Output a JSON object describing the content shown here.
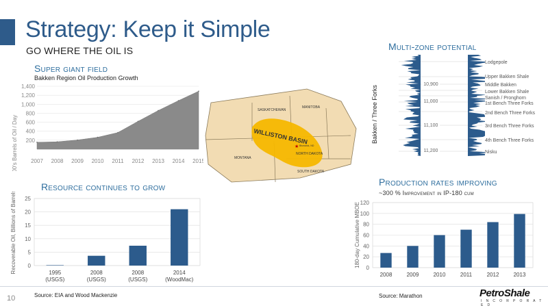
{
  "page": {
    "title": "Strategy: Keep it Simple",
    "subtitle": "GO WHERE THE OIL IS",
    "page_number": "10",
    "logo": "PetroShale",
    "logo_sub": "I N C O R P O R A T E D"
  },
  "colors": {
    "title": "#2e5b8a",
    "section_head": "#2e6e9e",
    "bar": "#2c5b8c",
    "area": "#8a8a8a",
    "basin": "#f5b700",
    "map_land": "#f2dcb3"
  },
  "super_giant": {
    "heading": "Super giant field",
    "caption": "Bakken Region Oil Production Growth"
  },
  "resource": {
    "heading": "Resource continues to grow",
    "source": "Source:  EIA and Wood Mackenzie"
  },
  "multizone": {
    "heading": "Multi-zone potential",
    "ylabel": "Bakken / Three Forks",
    "depths": [
      "10,900",
      "11,000",
      "11,100",
      "11,200"
    ],
    "zones": [
      "Lodgepole",
      "Upper Bakken Shale",
      "Middle Bakken",
      "Lower Bakken Shale",
      "Sanish / Pronghorn",
      "1st Bench Three Forks",
      "2nd Bench Three Forks",
      "3rd Bench Three Forks",
      "4th Bench Three Forks",
      "Nisku"
    ]
  },
  "production": {
    "heading": "Production rates improving",
    "subheading": "~300 % Improvement in IP-180 cum",
    "source": "Source: Marathon"
  },
  "map": {
    "labels": [
      "SASKATCHEWAN",
      "MANITOBA",
      "MONTANA",
      "NORTH DAKOTA",
      "SOUTH DAKOTA",
      "WILLISTON BASIN"
    ],
    "city": "Bismarck, ND"
  },
  "chart_data": [
    {
      "type": "area",
      "title": "Bakken Region Oil Production Growth",
      "ylabel": "000's Barrels of Oil / Day",
      "x": [
        2007,
        2008,
        2009,
        2010,
        2011,
        2012,
        2013,
        2014,
        2015
      ],
      "values": [
        155,
        165,
        205,
        265,
        370,
        620,
        860,
        1080,
        1290
      ],
      "ylim": [
        0,
        1400
      ],
      "yticks": [
        200,
        400,
        600,
        800,
        1000,
        1200,
        1400
      ],
      "ytick_labels": [
        "200",
        "400",
        "600",
        "800",
        "1,000",
        "1,200",
        "1,400"
      ],
      "xtick_labels": [
        "2007",
        "2008",
        "2009",
        "2010",
        "2011",
        "2012",
        "2013",
        "2014",
        "2015"
      ],
      "grid": true
    },
    {
      "type": "bar",
      "ylabel": "Recoverable Oil, Billions of Barrels",
      "categories": [
        "1995\n(USGS)",
        "2008\n(USGS)",
        "2008\n(USGS)",
        "2014\n(WoodMac)"
      ],
      "category_lines": [
        [
          "1995",
          "(USGS)"
        ],
        [
          "2008",
          "(USGS)"
        ],
        [
          "2008",
          "(USGS)"
        ],
        [
          "2014",
          "(WoodMac)"
        ]
      ],
      "values": [
        0.15,
        3.65,
        7.4,
        21.0
      ],
      "ylim": [
        0,
        25
      ],
      "yticks": [
        0,
        5,
        10,
        15,
        20,
        25
      ],
      "grid": true
    },
    {
      "type": "bar",
      "ylabel": "180-day Cumulative MBOE",
      "categories": [
        "2008",
        "2009",
        "2010",
        "2011",
        "2012",
        "2013"
      ],
      "values": [
        27,
        40,
        60,
        70,
        84,
        99
      ],
      "ylim": [
        0,
        120
      ],
      "yticks": [
        0,
        20,
        40,
        60,
        80,
        100,
        120
      ],
      "grid": true
    }
  ]
}
